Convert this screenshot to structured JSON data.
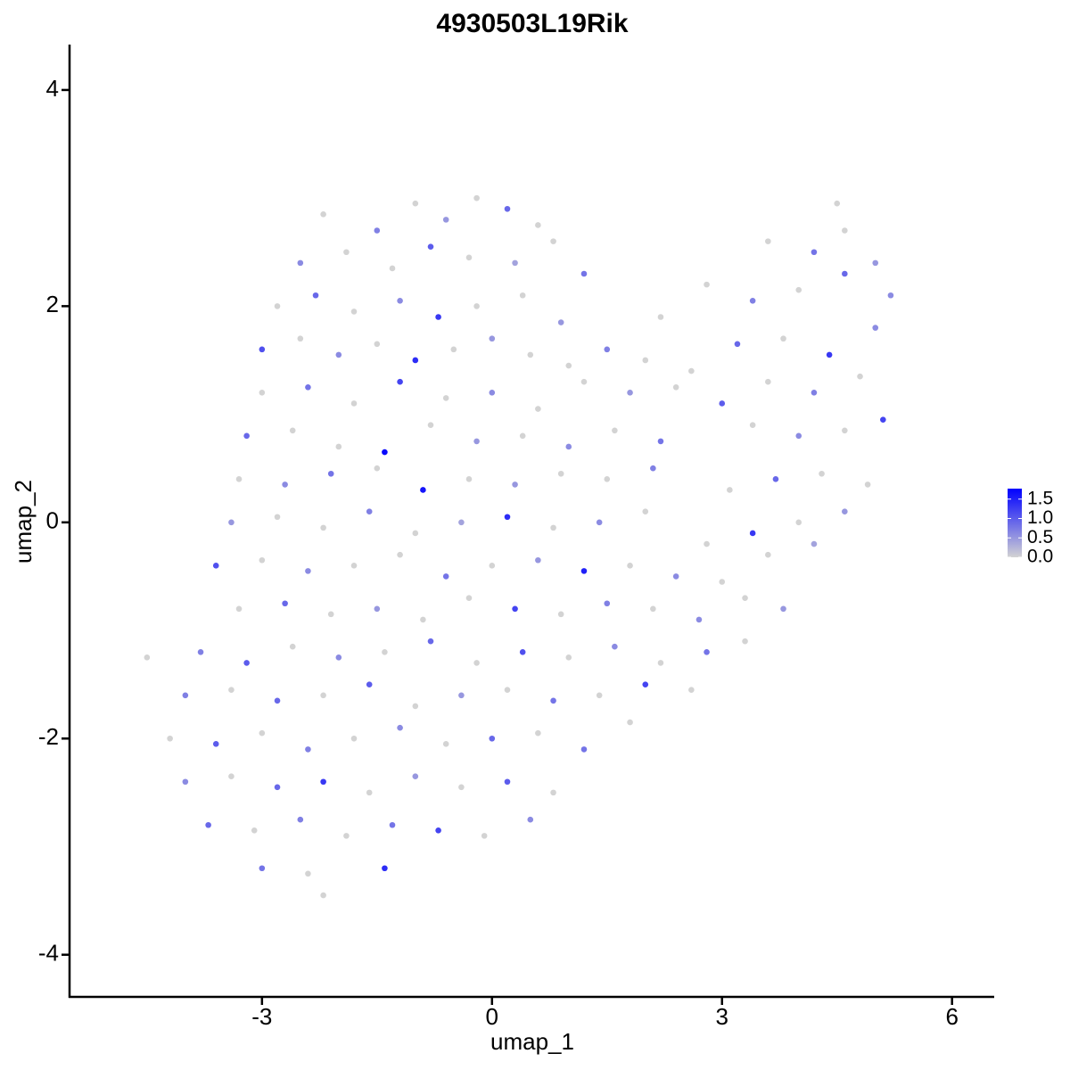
{
  "chart_data": {
    "type": "scatter",
    "title": "4930503L19Rik",
    "x_label": "umap_1",
    "y_label": "umap_2",
    "xlim": [
      -5.51,
      6.55
    ],
    "ylim": [
      -4.39,
      4.42
    ],
    "xticks": [
      -3,
      0,
      3,
      6
    ],
    "yticks": [
      -4,
      -2,
      0,
      2,
      4
    ],
    "color_scale": {
      "low": "#d3d3d3",
      "high": "#0000ff",
      "lim": [
        0,
        1.77
      ],
      "ticks": [
        {
          "value": 0,
          "label": "0.0"
        },
        0.5,
        {
          "value": 1,
          "label": "1.0"
        },
        1.5
      ]
    },
    "x": [
      -2.2,
      -1.5,
      -1.0,
      -0.6,
      -0.2,
      0.2,
      0.6,
      -2.5,
      -1.9,
      -1.3,
      -0.8,
      -0.3,
      0.3,
      0.8,
      1.2,
      -2.8,
      -2.3,
      -1.8,
      -1.2,
      -0.7,
      -0.2,
      0.4,
      0.9,
      2.2,
      2.8,
      3.4,
      4.0,
      4.6,
      5.2,
      3.6,
      4.2,
      4.6,
      5.0,
      4.5,
      -3.0,
      -2.5,
      -2.0,
      -1.5,
      -1.0,
      -0.5,
      0.0,
      0.5,
      1.0,
      1.5,
      2.0,
      2.6,
      3.2,
      3.8,
      4.4,
      5.0,
      -3.0,
      -2.4,
      -1.8,
      -1.2,
      -0.6,
      0,
      0.6,
      1.2,
      1.8,
      2.4,
      3.0,
      3.6,
      4.2,
      4.8,
      -3.2,
      -2.6,
      -2.0,
      -1.4,
      -0.8,
      -0.2,
      0.4,
      1.0,
      1.6,
      2.2,
      3.4,
      4.0,
      4.6,
      5.1,
      -3.3,
      -2.7,
      -2.1,
      -1.5,
      -0.9,
      -0.3,
      0.3,
      0.9,
      1.5,
      2.1,
      3.1,
      3.7,
      4.3,
      4.9,
      -3.4,
      -2.8,
      -2.2,
      -1.6,
      -1.0,
      -0.4,
      0.2,
      0.8,
      1.4,
      2.0,
      2.8,
      3.4,
      4.0,
      4.6,
      -3.6,
      -3.0,
      -2.4,
      -1.8,
      -1.2,
      -0.6,
      0,
      0.6,
      1.2,
      1.8,
      2.4,
      3.0,
      3.6,
      4.2,
      -3.3,
      -2.7,
      -2.1,
      -1.5,
      -0.9,
      -0.3,
      0.3,
      0.9,
      1.5,
      2.1,
      2.7,
      3.3,
      3.8,
      -4.5,
      -3.8,
      -3.2,
      -2.6,
      -2.0,
      -1.4,
      -0.8,
      -0.2,
      0.4,
      1.0,
      1.6,
      2.2,
      2.8,
      3.3,
      -4.0,
      -3.4,
      -2.8,
      -2.2,
      -1.6,
      -1.0,
      -0.4,
      0.2,
      0.8,
      1.4,
      2.0,
      2.6,
      -4.2,
      -3.6,
      -3.0,
      -2.4,
      -1.8,
      -1.2,
      -0.6,
      0,
      0.6,
      1.2,
      1.8,
      -4.0,
      -3.4,
      -2.8,
      -2.2,
      -1.6,
      -1.0,
      -0.4,
      0.2,
      0.8,
      -3.7,
      -3.1,
      -2.5,
      -1.9,
      -1.3,
      -0.7,
      -0.1,
      0.5,
      -3.0,
      -2.4,
      -1.4,
      -2.2
    ],
    "y": [
      2.85,
      2.7,
      2.95,
      2.8,
      3.0,
      2.9,
      2.75,
      2.4,
      2.5,
      2.35,
      2.55,
      2.45,
      2.4,
      2.6,
      2.3,
      2.0,
      2.1,
      1.95,
      2.05,
      1.9,
      2.0,
      2.1,
      1.85,
      1.9,
      2.2,
      2.05,
      2.15,
      2.3,
      2.1,
      2.6,
      2.5,
      2.7,
      2.4,
      2.95,
      1.6,
      1.7,
      1.55,
      1.65,
      1.5,
      1.6,
      1.7,
      1.55,
      1.45,
      1.6,
      1.5,
      1.4,
      1.65,
      1.7,
      1.55,
      1.8,
      1.2,
      1.25,
      1.1,
      1.3,
      1.15,
      1.2,
      1.05,
      1.3,
      1.2,
      1.25,
      1.1,
      1.3,
      1.2,
      1.35,
      0.8,
      0.85,
      0.7,
      0.65,
      0.9,
      0.75,
      0.8,
      0.7,
      0.85,
      0.75,
      0.9,
      0.8,
      0.85,
      0.95,
      0.4,
      0.35,
      0.45,
      0.5,
      0.3,
      0.4,
      0.35,
      0.45,
      0.4,
      0.5,
      0.3,
      0.4,
      0.45,
      0.35,
      0.0,
      0.05,
      -0.05,
      0.1,
      -0.1,
      0.0,
      0.05,
      -0.05,
      0.0,
      0.1,
      -0.2,
      -0.1,
      0.0,
      0.1,
      -0.4,
      -0.35,
      -0.45,
      -0.4,
      -0.3,
      -0.5,
      -0.4,
      -0.35,
      -0.45,
      -0.4,
      -0.5,
      -0.55,
      -0.3,
      -0.2,
      -0.8,
      -0.75,
      -0.85,
      -0.8,
      -0.9,
      -0.7,
      -0.8,
      -0.85,
      -0.75,
      -0.8,
      -0.9,
      -0.7,
      -0.8,
      -1.25,
      -1.2,
      -1.3,
      -1.15,
      -1.25,
      -1.2,
      -1.1,
      -1.3,
      -1.2,
      -1.25,
      -1.15,
      -1.3,
      -1.2,
      -1.1,
      -1.6,
      -1.55,
      -1.65,
      -1.6,
      -1.5,
      -1.7,
      -1.6,
      -1.55,
      -1.65,
      -1.6,
      -1.5,
      -1.55,
      -2.0,
      -2.05,
      -1.95,
      -2.1,
      -2.0,
      -1.9,
      -2.05,
      -2.0,
      -1.95,
      -2.1,
      -1.85,
      -2.4,
      -2.35,
      -2.45,
      -2.4,
      -2.5,
      -2.35,
      -2.45,
      -2.4,
      -2.5,
      -2.8,
      -2.85,
      -2.75,
      -2.9,
      -2.8,
      -2.85,
      -2.9,
      -2.75,
      -3.2,
      -3.25,
      -3.2,
      -3.45
    ],
    "values": [
      0,
      0.7,
      0,
      0.5,
      0,
      0.9,
      0,
      0.6,
      0,
      0,
      1.0,
      0,
      0.4,
      0,
      0.8,
      0,
      0.9,
      0,
      0.6,
      1.3,
      0,
      0,
      0.5,
      0,
      0,
      0.7,
      0,
      0.9,
      0.6,
      0,
      0.8,
      0,
      0.5,
      0,
      1.1,
      0,
      0.6,
      0,
      1.4,
      0,
      0.5,
      0,
      0,
      0.7,
      0,
      0,
      0.9,
      0,
      1.3,
      0.6,
      0,
      0.8,
      0,
      1.2,
      0,
      0.6,
      0,
      0,
      0.5,
      0,
      1.0,
      0,
      0.7,
      0,
      0.9,
      0,
      0,
      1.7,
      0,
      0.5,
      0,
      0.6,
      0,
      0.8,
      0,
      0.6,
      0,
      1.2,
      0,
      0.6,
      0.8,
      0,
      1.6,
      0,
      0.5,
      0,
      0,
      0.7,
      0,
      0.9,
      0,
      0,
      0.5,
      0,
      0,
      0.7,
      0,
      0.4,
      1.4,
      0,
      0.6,
      0,
      0,
      1.3,
      0,
      0.5,
      1.1,
      0,
      0.6,
      0,
      0,
      0.8,
      0,
      0.5,
      1.5,
      0,
      0.6,
      0,
      0,
      0.4,
      0,
      0.9,
      0,
      0.5,
      0,
      0,
      1.2,
      0,
      0.7,
      0,
      0.6,
      0,
      0.5,
      0,
      0.7,
      1.0,
      0,
      0.6,
      0,
      0.9,
      0,
      1.1,
      0,
      0.6,
      0,
      0.8,
      0,
      0.7,
      0,
      0.9,
      0,
      1.0,
      0,
      0.5,
      0,
      0.8,
      0,
      1.2,
      0,
      0,
      1.0,
      0,
      0.7,
      0,
      0.6,
      0,
      0.9,
      0,
      0.8,
      0,
      0.6,
      0,
      0.9,
      1.3,
      0,
      0.5,
      0,
      1.0,
      0,
      0.9,
      0,
      0.7,
      0,
      0.8,
      1.2,
      0,
      0.6,
      0.8,
      0,
      1.4,
      0
    ]
  }
}
